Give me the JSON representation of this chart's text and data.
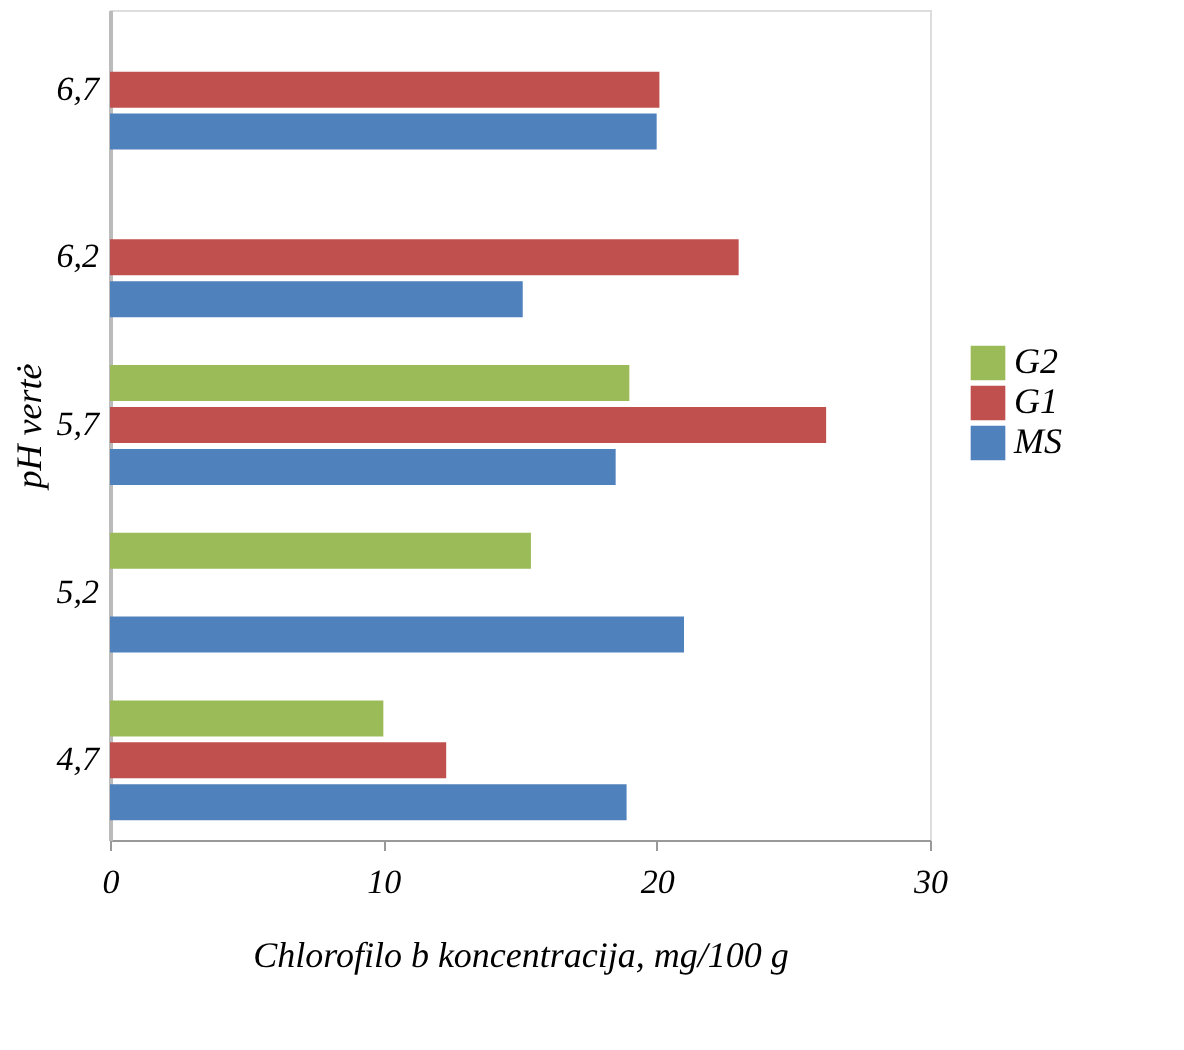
{
  "chart_data": {
    "type": "bar",
    "orientation": "horizontal",
    "xlabel": "Chlorofilo b koncentracija, mg/100 g",
    "ylabel": "pH vertė",
    "categories": [
      "6,7",
      "6,2",
      "5,7",
      "5,2",
      "4,7"
    ],
    "series": [
      {
        "name": "G2",
        "color": "#9bbb59",
        "values": [
          null,
          null,
          19.0,
          15.4,
          10.0
        ]
      },
      {
        "name": "G1",
        "color": "#c0504d",
        "values": [
          20.1,
          23.0,
          26.2,
          null,
          12.3
        ]
      },
      {
        "name": "MS",
        "color": "#4f81bd",
        "values": [
          20.0,
          15.1,
          18.5,
          21.0,
          18.9
        ]
      }
    ],
    "xlim": [
      0,
      30
    ],
    "xticks": [
      0,
      10,
      20,
      30
    ],
    "grid": false,
    "legend": "right"
  }
}
